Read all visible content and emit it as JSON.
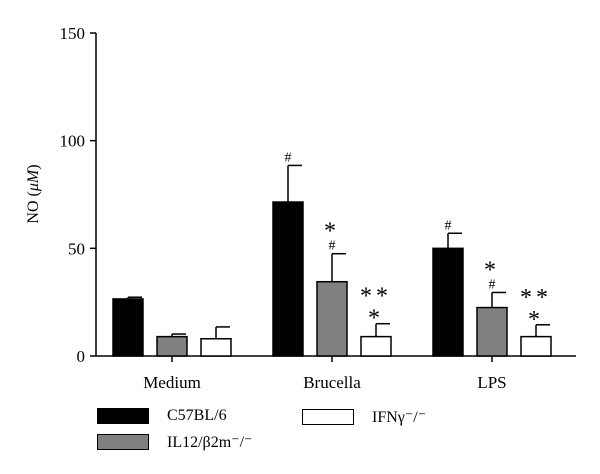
{
  "chart_data": {
    "type": "bar",
    "title": "",
    "xlabel": "",
    "ylabel_prefix": "NO (",
    "ylabel_unit": "μM",
    "ylabel_suffix": ")",
    "ylim": [
      0,
      150
    ],
    "yticks": [
      "0",
      "50",
      "100",
      "150"
    ],
    "categories": [
      "Medium",
      "Brucella",
      "LPS"
    ],
    "grid": false,
    "legend_position": "bottom-left",
    "series": [
      {
        "legend_label": "C57BL/6",
        "color": "#000000",
        "values": [
          26.5,
          71.5,
          50
        ],
        "errors": [
          0.8,
          17,
          7
        ],
        "annotations": [
          "",
          "#",
          "#"
        ]
      },
      {
        "legend_label": "IL12/β2m⁻/⁻",
        "color": "#808080",
        "values": [
          9,
          34.5,
          22.5
        ],
        "errors": [
          1.2,
          13,
          7
        ],
        "annotations": [
          "",
          "* #",
          "* #"
        ]
      },
      {
        "legend_label": "IFNγ⁻/⁻",
        "color": "#ffffff",
        "values": [
          8,
          9,
          9
        ],
        "errors": [
          5.5,
          6,
          5.5
        ],
        "annotations": [
          "",
          "** *",
          "** *"
        ]
      }
    ]
  }
}
